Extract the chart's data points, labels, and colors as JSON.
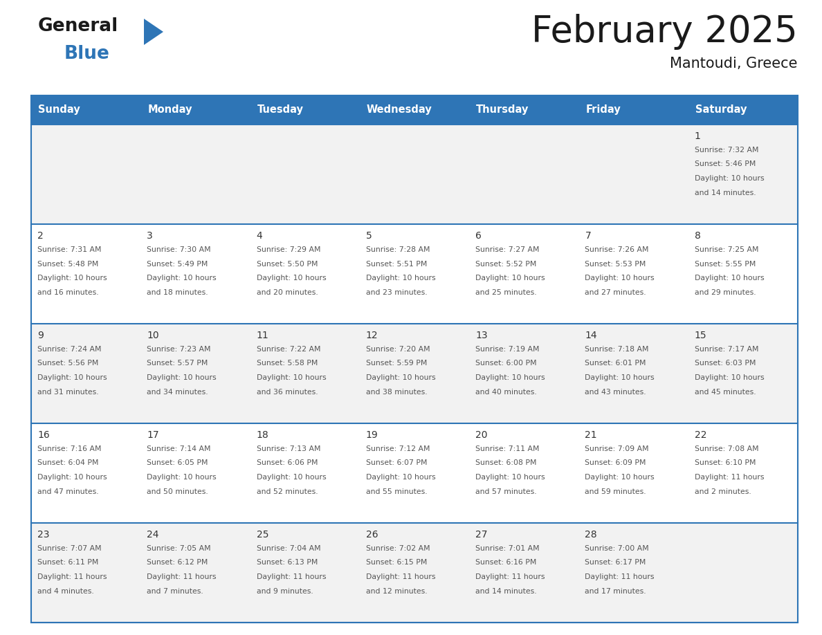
{
  "title": "February 2025",
  "subtitle": "Mantoudi, Greece",
  "header_bg": "#2E75B6",
  "header_text_color": "#FFFFFF",
  "days_of_week": [
    "Sunday",
    "Monday",
    "Tuesday",
    "Wednesday",
    "Thursday",
    "Friday",
    "Saturday"
  ],
  "row_bg_even": "#F2F2F2",
  "row_bg_odd": "#FFFFFF",
  "cell_border_color": "#2E75B6",
  "day_number_color": "#333333",
  "info_text_color": "#555555",
  "calendar": [
    [
      null,
      null,
      null,
      null,
      null,
      null,
      {
        "day": 1,
        "sunrise": "7:32 AM",
        "sunset": "5:46 PM",
        "daylight": "10 hours and 14 minutes"
      }
    ],
    [
      {
        "day": 2,
        "sunrise": "7:31 AM",
        "sunset": "5:48 PM",
        "daylight": "10 hours and 16 minutes"
      },
      {
        "day": 3,
        "sunrise": "7:30 AM",
        "sunset": "5:49 PM",
        "daylight": "10 hours and 18 minutes"
      },
      {
        "day": 4,
        "sunrise": "7:29 AM",
        "sunset": "5:50 PM",
        "daylight": "10 hours and 20 minutes"
      },
      {
        "day": 5,
        "sunrise": "7:28 AM",
        "sunset": "5:51 PM",
        "daylight": "10 hours and 23 minutes"
      },
      {
        "day": 6,
        "sunrise": "7:27 AM",
        "sunset": "5:52 PM",
        "daylight": "10 hours and 25 minutes"
      },
      {
        "day": 7,
        "sunrise": "7:26 AM",
        "sunset": "5:53 PM",
        "daylight": "10 hours and 27 minutes"
      },
      {
        "day": 8,
        "sunrise": "7:25 AM",
        "sunset": "5:55 PM",
        "daylight": "10 hours and 29 minutes"
      }
    ],
    [
      {
        "day": 9,
        "sunrise": "7:24 AM",
        "sunset": "5:56 PM",
        "daylight": "10 hours and 31 minutes"
      },
      {
        "day": 10,
        "sunrise": "7:23 AM",
        "sunset": "5:57 PM",
        "daylight": "10 hours and 34 minutes"
      },
      {
        "day": 11,
        "sunrise": "7:22 AM",
        "sunset": "5:58 PM",
        "daylight": "10 hours and 36 minutes"
      },
      {
        "day": 12,
        "sunrise": "7:20 AM",
        "sunset": "5:59 PM",
        "daylight": "10 hours and 38 minutes"
      },
      {
        "day": 13,
        "sunrise": "7:19 AM",
        "sunset": "6:00 PM",
        "daylight": "10 hours and 40 minutes"
      },
      {
        "day": 14,
        "sunrise": "7:18 AM",
        "sunset": "6:01 PM",
        "daylight": "10 hours and 43 minutes"
      },
      {
        "day": 15,
        "sunrise": "7:17 AM",
        "sunset": "6:03 PM",
        "daylight": "10 hours and 45 minutes"
      }
    ],
    [
      {
        "day": 16,
        "sunrise": "7:16 AM",
        "sunset": "6:04 PM",
        "daylight": "10 hours and 47 minutes"
      },
      {
        "day": 17,
        "sunrise": "7:14 AM",
        "sunset": "6:05 PM",
        "daylight": "10 hours and 50 minutes"
      },
      {
        "day": 18,
        "sunrise": "7:13 AM",
        "sunset": "6:06 PM",
        "daylight": "10 hours and 52 minutes"
      },
      {
        "day": 19,
        "sunrise": "7:12 AM",
        "sunset": "6:07 PM",
        "daylight": "10 hours and 55 minutes"
      },
      {
        "day": 20,
        "sunrise": "7:11 AM",
        "sunset": "6:08 PM",
        "daylight": "10 hours and 57 minutes"
      },
      {
        "day": 21,
        "sunrise": "7:09 AM",
        "sunset": "6:09 PM",
        "daylight": "10 hours and 59 minutes"
      },
      {
        "day": 22,
        "sunrise": "7:08 AM",
        "sunset": "6:10 PM",
        "daylight": "11 hours and 2 minutes"
      }
    ],
    [
      {
        "day": 23,
        "sunrise": "7:07 AM",
        "sunset": "6:11 PM",
        "daylight": "11 hours and 4 minutes"
      },
      {
        "day": 24,
        "sunrise": "7:05 AM",
        "sunset": "6:12 PM",
        "daylight": "11 hours and 7 minutes"
      },
      {
        "day": 25,
        "sunrise": "7:04 AM",
        "sunset": "6:13 PM",
        "daylight": "11 hours and 9 minutes"
      },
      {
        "day": 26,
        "sunrise": "7:02 AM",
        "sunset": "6:15 PM",
        "daylight": "11 hours and 12 minutes"
      },
      {
        "day": 27,
        "sunrise": "7:01 AM",
        "sunset": "6:16 PM",
        "daylight": "11 hours and 14 minutes"
      },
      {
        "day": 28,
        "sunrise": "7:00 AM",
        "sunset": "6:17 PM",
        "daylight": "11 hours and 17 minutes"
      },
      null
    ]
  ],
  "logo_general_color": "#1a1a1a",
  "logo_blue_color": "#2E75B6",
  "fig_width": 11.88,
  "fig_height": 9.18,
  "fig_dpi": 100
}
